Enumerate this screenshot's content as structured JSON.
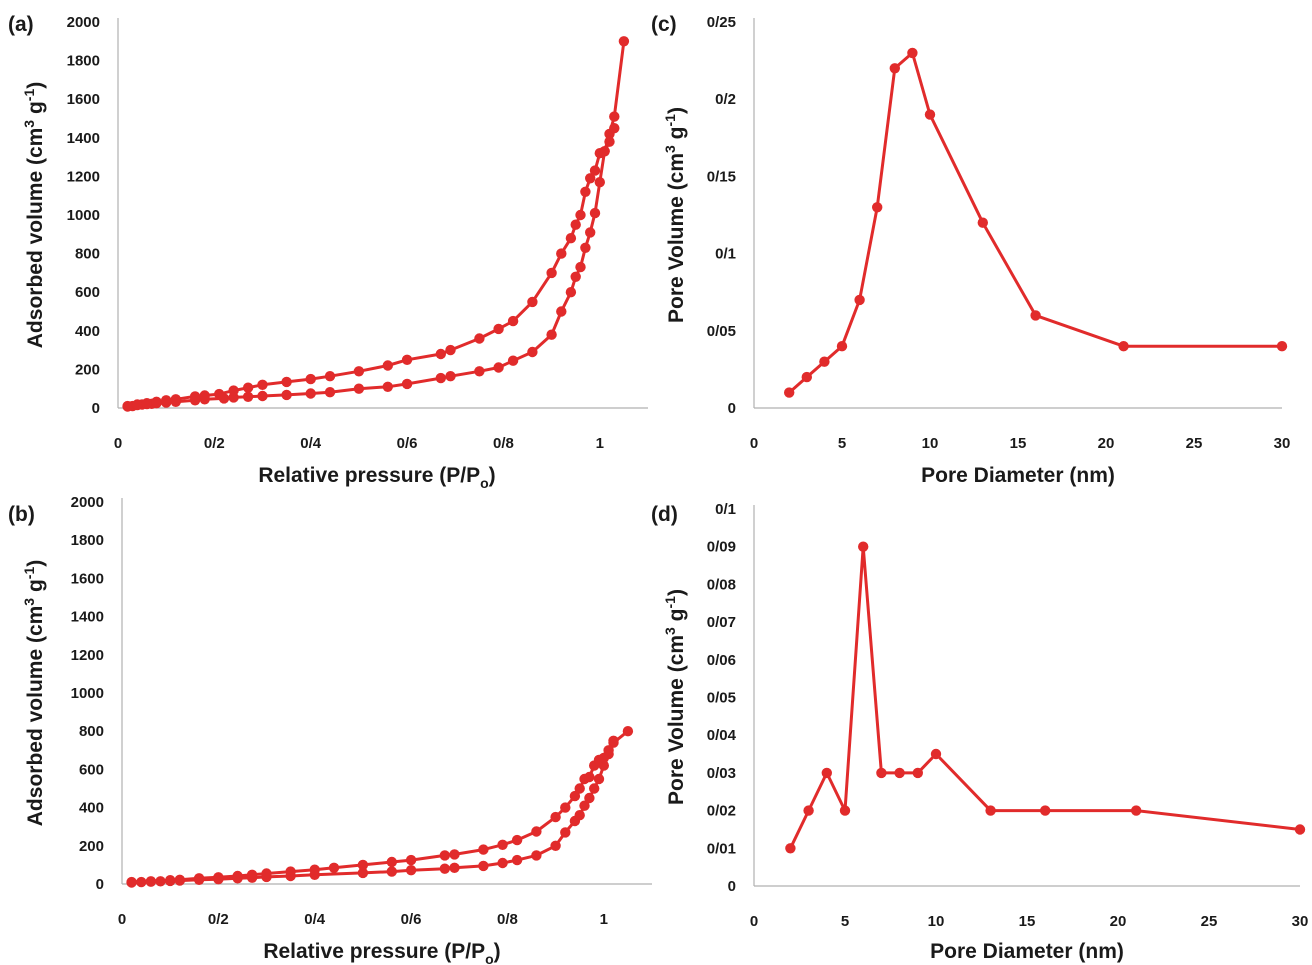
{
  "colors": {
    "series": "#e12b2b",
    "axis": "#b0b0b0",
    "text": "#1a1a1a"
  },
  "chart_data": [
    {
      "panel": "(a)",
      "type": "line",
      "xlabel": "Relative pressure (P/P",
      "xlabel_sub": "o",
      "xlabel_end": ")",
      "ylabel": "Adsorbed volume (cm",
      "ylabel_sup1": "3",
      "ylabel_mid": " g",
      "ylabel_sup2": "-1",
      "ylabel_end": ")",
      "xlim": [
        0,
        1.1
      ],
      "ylim": [
        0,
        2000
      ],
      "xticks": [
        "0",
        "0/2",
        "0/4",
        "0/6",
        "0/8",
        "1"
      ],
      "xtick_values": [
        0,
        0.2,
        0.4,
        0.6,
        0.8,
        1.0
      ],
      "yticks": [
        "0",
        "200",
        "400",
        "600",
        "800",
        "1000",
        "1200",
        "1400",
        "1600",
        "1800",
        "2000"
      ],
      "ytick_values": [
        0,
        200,
        400,
        600,
        800,
        1000,
        1200,
        1400,
        1600,
        1800,
        2000
      ],
      "series": [
        {
          "points": [
            [
              0.02,
              8
            ],
            [
              0.03,
              10
            ],
            [
              0.04,
              15
            ],
            [
              0.05,
              18
            ],
            [
              0.06,
              20
            ],
            [
              0.07,
              22
            ],
            [
              0.08,
              25
            ],
            [
              0.1,
              28
            ],
            [
              0.12,
              32
            ],
            [
              0.16,
              40
            ],
            [
              0.18,
              45
            ],
            [
              0.22,
              50
            ],
            [
              0.24,
              55
            ],
            [
              0.27,
              58
            ],
            [
              0.3,
              62
            ],
            [
              0.35,
              68
            ],
            [
              0.4,
              75
            ],
            [
              0.44,
              82
            ],
            [
              0.5,
              100
            ],
            [
              0.56,
              110
            ],
            [
              0.6,
              125
            ],
            [
              0.67,
              155
            ],
            [
              0.69,
              165
            ],
            [
              0.75,
              190
            ],
            [
              0.79,
              210
            ],
            [
              0.82,
              245
            ],
            [
              0.86,
              290
            ],
            [
              0.9,
              380
            ],
            [
              0.92,
              500
            ],
            [
              0.94,
              600
            ],
            [
              0.95,
              680
            ],
            [
              0.96,
              730
            ],
            [
              0.97,
              830
            ],
            [
              0.98,
              910
            ],
            [
              0.99,
              1010
            ],
            [
              1.0,
              1170
            ],
            [
              1.01,
              1330
            ],
            [
              1.02,
              1420
            ],
            [
              1.03,
              1510
            ],
            [
              1.05,
              1900
            ]
          ]
        },
        {
          "points": [
            [
              0.02,
              10
            ],
            [
              0.04,
              18
            ],
            [
              0.06,
              25
            ],
            [
              0.08,
              32
            ],
            [
              0.1,
              40
            ],
            [
              0.12,
              45
            ],
            [
              0.16,
              60
            ],
            [
              0.18,
              65
            ],
            [
              0.21,
              72
            ],
            [
              0.24,
              90
            ],
            [
              0.27,
              105
            ],
            [
              0.3,
              120
            ],
            [
              0.35,
              135
            ],
            [
              0.4,
              150
            ],
            [
              0.44,
              165
            ],
            [
              0.5,
              190
            ],
            [
              0.56,
              220
            ],
            [
              0.6,
              250
            ],
            [
              0.67,
              280
            ],
            [
              0.69,
              300
            ],
            [
              0.75,
              360
            ],
            [
              0.79,
              410
            ],
            [
              0.82,
              450
            ],
            [
              0.86,
              550
            ],
            [
              0.9,
              700
            ],
            [
              0.92,
              800
            ],
            [
              0.94,
              880
            ],
            [
              0.95,
              950
            ],
            [
              0.96,
              1000
            ],
            [
              0.97,
              1120
            ],
            [
              0.98,
              1190
            ],
            [
              0.99,
              1230
            ],
            [
              1.0,
              1320
            ],
            [
              1.01,
              1330
            ],
            [
              1.02,
              1380
            ],
            [
              1.03,
              1450
            ]
          ]
        }
      ]
    },
    {
      "panel": "(b)",
      "type": "line",
      "xlabel": "Relative pressure (P/P",
      "xlabel_sub": "o",
      "xlabel_end": ")",
      "ylabel": "Adsorbed volume (cm",
      "ylabel_sup1": "3",
      "ylabel_mid": " g",
      "ylabel_sup2": "-1",
      "ylabel_end": ")",
      "xlim": [
        0,
        1.1
      ],
      "ylim": [
        0,
        2000
      ],
      "xticks": [
        "0",
        "0/2",
        "0/4",
        "0/6",
        "0/8",
        "1"
      ],
      "xtick_values": [
        0,
        0.2,
        0.4,
        0.6,
        0.8,
        1.0
      ],
      "yticks": [
        "0",
        "200",
        "400",
        "600",
        "800",
        "1000",
        "1200",
        "1400",
        "1600",
        "1800",
        "2000"
      ],
      "ytick_values": [
        0,
        200,
        400,
        600,
        800,
        1000,
        1200,
        1400,
        1600,
        1800,
        2000
      ],
      "series": [
        {
          "points": [
            [
              0.02,
              8
            ],
            [
              0.04,
              10
            ],
            [
              0.06,
              12
            ],
            [
              0.08,
              14
            ],
            [
              0.1,
              16
            ],
            [
              0.12,
              18
            ],
            [
              0.16,
              22
            ],
            [
              0.2,
              25
            ],
            [
              0.24,
              30
            ],
            [
              0.27,
              33
            ],
            [
              0.3,
              37
            ],
            [
              0.35,
              42
            ],
            [
              0.4,
              48
            ],
            [
              0.5,
              58
            ],
            [
              0.56,
              65
            ],
            [
              0.6,
              72
            ],
            [
              0.67,
              80
            ],
            [
              0.69,
              85
            ],
            [
              0.75,
              95
            ],
            [
              0.79,
              110
            ],
            [
              0.82,
              125
            ],
            [
              0.86,
              150
            ],
            [
              0.9,
              200
            ],
            [
              0.92,
              270
            ],
            [
              0.94,
              330
            ],
            [
              0.95,
              360
            ],
            [
              0.96,
              410
            ],
            [
              0.97,
              450
            ],
            [
              0.98,
              500
            ],
            [
              0.99,
              550
            ],
            [
              1.0,
              620
            ],
            [
              1.01,
              680
            ],
            [
              1.02,
              740
            ],
            [
              1.05,
              800
            ]
          ]
        },
        {
          "points": [
            [
              0.02,
              10
            ],
            [
              0.06,
              14
            ],
            [
              0.1,
              20
            ],
            [
              0.12,
              22
            ],
            [
              0.16,
              30
            ],
            [
              0.2,
              35
            ],
            [
              0.24,
              42
            ],
            [
              0.27,
              48
            ],
            [
              0.3,
              55
            ],
            [
              0.35,
              65
            ],
            [
              0.4,
              75
            ],
            [
              0.44,
              85
            ],
            [
              0.5,
              100
            ],
            [
              0.56,
              115
            ],
            [
              0.6,
              125
            ],
            [
              0.67,
              150
            ],
            [
              0.69,
              155
            ],
            [
              0.75,
              180
            ],
            [
              0.79,
              205
            ],
            [
              0.82,
              230
            ],
            [
              0.86,
              275
            ],
            [
              0.9,
              350
            ],
            [
              0.92,
              400
            ],
            [
              0.94,
              460
            ],
            [
              0.95,
              500
            ],
            [
              0.96,
              550
            ],
            [
              0.97,
              560
            ],
            [
              0.98,
              620
            ],
            [
              0.99,
              650
            ],
            [
              1.0,
              660
            ],
            [
              1.01,
              700
            ],
            [
              1.02,
              750
            ]
          ]
        }
      ]
    },
    {
      "panel": "(c)",
      "type": "line",
      "xlabel": "Pore Diameter (nm)",
      "ylabel": "Pore Volume (cm",
      "ylabel_sup1": "3",
      "ylabel_mid": " g",
      "ylabel_sup2": "-1",
      "ylabel_end": ")",
      "xlim": [
        0,
        30
      ],
      "ylim": [
        0,
        0.25
      ],
      "xticks": [
        "0",
        "5",
        "10",
        "15",
        "20",
        "25",
        "30"
      ],
      "xtick_values": [
        0,
        5,
        10,
        15,
        20,
        25,
        30
      ],
      "yticks": [
        "0",
        "0/05",
        "0/1",
        "0/15",
        "0/2",
        "0/25"
      ],
      "ytick_values": [
        0,
        0.05,
        0.1,
        0.15,
        0.2,
        0.25
      ],
      "series": [
        {
          "points": [
            [
              2,
              0.01
            ],
            [
              3,
              0.02
            ],
            [
              4,
              0.03
            ],
            [
              5,
              0.04
            ],
            [
              6,
              0.07
            ],
            [
              7,
              0.13
            ],
            [
              8,
              0.22
            ],
            [
              9,
              0.23
            ],
            [
              10,
              0.19
            ],
            [
              13,
              0.12
            ],
            [
              16,
              0.06
            ],
            [
              21,
              0.04
            ],
            [
              30,
              0.04
            ]
          ]
        }
      ]
    },
    {
      "panel": "(d)",
      "type": "line",
      "xlabel": "Pore Diameter (nm)",
      "ylabel": "Pore Volume (cm",
      "ylabel_sup1": "3",
      "ylabel_mid": " g",
      "ylabel_sup2": "-1",
      "ylabel_end": ")",
      "xlim": [
        0,
        30
      ],
      "ylim": [
        0,
        0.1
      ],
      "xticks": [
        "0",
        "5",
        "10",
        "15",
        "20",
        "25",
        "30"
      ],
      "xtick_values": [
        0,
        5,
        10,
        15,
        20,
        25,
        30
      ],
      "yticks": [
        "0",
        "0/01",
        "0/02",
        "0/03",
        "0/04",
        "0/05",
        "0/06",
        "0/07",
        "0/08",
        "0/09",
        "0/1"
      ],
      "ytick_values": [
        0,
        0.01,
        0.02,
        0.03,
        0.04,
        0.05,
        0.06,
        0.07,
        0.08,
        0.09,
        0.1
      ],
      "series": [
        {
          "points": [
            [
              2,
              0.01
            ],
            [
              3,
              0.02
            ],
            [
              4,
              0.03
            ],
            [
              5,
              0.02
            ],
            [
              6,
              0.09
            ],
            [
              7,
              0.03
            ],
            [
              8,
              0.03
            ],
            [
              9,
              0.03
            ],
            [
              10,
              0.035
            ],
            [
              13,
              0.02
            ],
            [
              16,
              0.02
            ],
            [
              21,
              0.02
            ],
            [
              30,
              0.015
            ]
          ]
        }
      ]
    }
  ]
}
